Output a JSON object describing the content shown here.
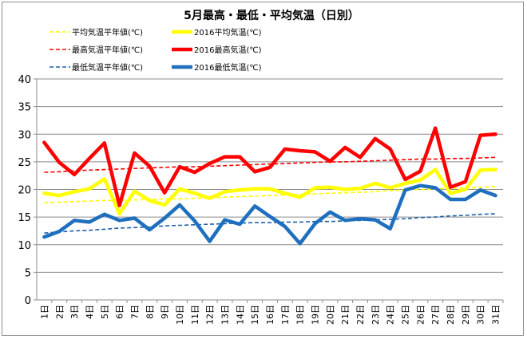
{
  "chart_data": {
    "type": "line",
    "title": "5月最高・最低・平均気温（日別）",
    "categories": [
      "1日",
      "2日",
      "3日",
      "4日",
      "5日",
      "6日",
      "7日",
      "8日",
      "9日",
      "10日",
      "11日",
      "12日",
      "13日",
      "14日",
      "15日",
      "16日",
      "17日",
      "18日",
      "19日",
      "20日",
      "21日",
      "22日",
      "23日",
      "24日",
      "25日",
      "26日",
      "27日",
      "28日",
      "29日",
      "30日",
      "31日"
    ],
    "ylim": [
      0,
      40
    ],
    "yticks": [
      0,
      5,
      10,
      15,
      20,
      25,
      30,
      35,
      40
    ],
    "grid": true,
    "legend_position": "top",
    "series": [
      {
        "name": "平均気温平年値(℃)",
        "color": "#ffff00",
        "style": "dashed",
        "values": [
          17.6,
          17.7,
          17.8,
          17.9,
          18.0,
          18.0,
          18.1,
          18.2,
          18.3,
          18.3,
          18.4,
          18.5,
          18.6,
          18.7,
          18.8,
          18.9,
          19.0,
          19.1,
          19.2,
          19.3,
          19.4,
          19.5,
          19.6,
          19.8,
          19.9,
          20.0,
          20.1,
          20.2,
          20.3,
          20.4,
          20.5
        ]
      },
      {
        "name": "2016平均気温(℃)",
        "color": "#ffff00",
        "style": "solid",
        "values": [
          19.3,
          18.9,
          19.6,
          20.1,
          21.9,
          15.6,
          19.7,
          18.0,
          17.2,
          20.1,
          19.3,
          18.4,
          19.6,
          19.9,
          20.1,
          20.1,
          19.3,
          18.6,
          20.3,
          20.4,
          20.0,
          20.2,
          21.1,
          20.3,
          21.1,
          21.7,
          23.6,
          19.3,
          20.0,
          23.5,
          23.6
        ]
      },
      {
        "name": "最高気温平年値(℃)",
        "color": "#ff0000",
        "style": "dashed",
        "values": [
          23.1,
          23.2,
          23.4,
          23.5,
          23.6,
          23.7,
          23.8,
          23.9,
          24.0,
          24.1,
          24.1,
          24.2,
          24.3,
          24.4,
          24.5,
          24.6,
          24.7,
          24.8,
          24.9,
          25.0,
          25.0,
          25.1,
          25.2,
          25.3,
          25.4,
          25.5,
          25.5,
          25.6,
          25.6,
          25.7,
          25.8
        ]
      },
      {
        "name": "2016最高気温(℃)",
        "color": "#ff0000",
        "style": "solid",
        "values": [
          28.5,
          24.9,
          22.7,
          25.6,
          28.4,
          17.1,
          26.6,
          24.2,
          19.4,
          24.1,
          23.1,
          24.7,
          25.9,
          25.9,
          23.2,
          24.0,
          27.3,
          27.0,
          26.8,
          25.1,
          27.6,
          25.8,
          29.2,
          27.3,
          21.8,
          23.3,
          31.1,
          20.4,
          21.4,
          29.8,
          30.0
        ]
      },
      {
        "name": "最低気温平年値(℃)",
        "color": "#1f5fa8",
        "style": "dashed",
        "values": [
          12.1,
          12.3,
          12.5,
          12.6,
          12.8,
          13.0,
          13.1,
          13.2,
          13.4,
          13.5,
          13.6,
          13.7,
          13.8,
          13.9,
          14.0,
          14.0,
          14.1,
          14.1,
          14.2,
          14.2,
          14.3,
          14.4,
          14.5,
          14.6,
          14.7,
          14.9,
          15.0,
          15.2,
          15.3,
          15.5,
          15.6
        ]
      },
      {
        "name": "2016最低気温(℃)",
        "color": "#1f6fbf",
        "style": "solid",
        "values": [
          11.4,
          12.4,
          14.4,
          14.1,
          15.5,
          14.4,
          14.8,
          12.7,
          14.8,
          17.2,
          14.3,
          10.6,
          14.5,
          13.7,
          17.0,
          15.1,
          13.3,
          10.2,
          13.8,
          15.9,
          14.4,
          14.7,
          14.5,
          12.9,
          19.9,
          20.7,
          20.3,
          18.2,
          18.2,
          19.9,
          18.9
        ]
      }
    ]
  }
}
